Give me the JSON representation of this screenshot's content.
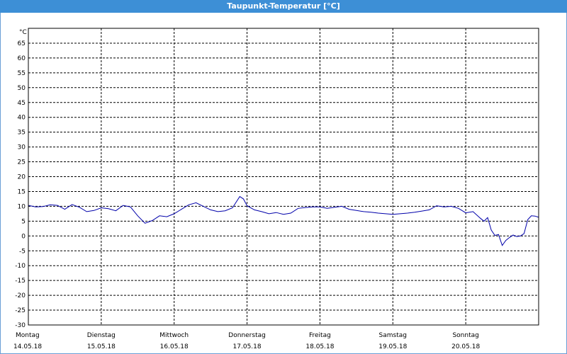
{
  "window": {
    "title": "Taupunkt-Temperatur [°C]"
  },
  "colors": {
    "title_bar": "#3d8fd6",
    "series_line": "#0000aa",
    "grid": "#000000"
  },
  "chart_data": {
    "type": "line",
    "title": "Taupunkt-Temperatur [°C]",
    "ylabel": "°C",
    "ylim": [
      -30,
      70
    ],
    "yticks": [
      65,
      60,
      55,
      50,
      45,
      40,
      35,
      30,
      25,
      20,
      15,
      10,
      5,
      0,
      -5,
      -10,
      -15,
      -20,
      -25,
      -30
    ],
    "xlim": [
      0,
      7
    ],
    "xticks": [
      {
        "x": 0,
        "day": "Montag",
        "date": "14.05.18"
      },
      {
        "x": 1,
        "day": "Dienstag",
        "date": "15.05.18"
      },
      {
        "x": 2,
        "day": "Mittwoch",
        "date": "16.05.18"
      },
      {
        "x": 3,
        "day": "Donnerstag",
        "date": "17.05.18"
      },
      {
        "x": 4,
        "day": "Freitag",
        "date": "18.05.18"
      },
      {
        "x": 5,
        "day": "Samstag",
        "date": "19.05.18"
      },
      {
        "x": 6,
        "day": "Sonntag",
        "date": "20.05.18"
      }
    ],
    "grid": true,
    "series": [
      {
        "x": [
          0,
          0.1,
          0.2,
          0.3,
          0.4,
          0.5,
          0.6,
          0.7,
          0.8,
          0.9,
          1.0,
          1.1,
          1.2,
          1.3,
          1.4,
          1.5,
          1.6,
          1.7,
          1.8,
          1.9,
          2.0,
          2.1,
          2.2,
          2.3,
          2.4,
          2.5,
          2.6,
          2.7,
          2.8,
          2.9,
          2.95,
          3.0,
          3.1,
          3.2,
          3.3,
          3.4,
          3.5,
          3.6,
          3.7,
          3.8,
          3.9,
          4.0,
          4.1,
          4.2,
          4.3,
          4.4,
          4.5,
          4.6,
          4.7,
          4.8,
          4.9,
          5.0,
          5.1,
          5.2,
          5.3,
          5.4,
          5.5,
          5.6,
          5.7,
          5.8,
          5.9,
          6.0,
          6.1,
          6.2,
          6.25,
          6.3,
          6.35,
          6.4,
          6.45,
          6.5,
          6.55,
          6.6,
          6.65,
          6.7,
          6.75,
          6.8,
          6.85,
          6.9,
          6.95,
          7.0
        ],
        "y": [
          10.3,
          9.8,
          9.9,
          10.5,
          10.3,
          9.0,
          10.6,
          9.7,
          8.2,
          8.6,
          9.5,
          9.2,
          8.5,
          10.3,
          9.8,
          6.8,
          4.3,
          5.2,
          6.8,
          6.5,
          7.5,
          9.0,
          10.5,
          11.2,
          10.0,
          8.8,
          8.2,
          8.5,
          9.5,
          13.3,
          12.5,
          10.2,
          8.8,
          8.2,
          7.5,
          7.9,
          7.3,
          7.7,
          9.3,
          9.6,
          9.8,
          9.8,
          9.3,
          9.7,
          10.0,
          9.0,
          8.6,
          8.2,
          8.0,
          7.7,
          7.5,
          7.3,
          7.5,
          7.7,
          8.0,
          8.4,
          8.8,
          10.2,
          9.8,
          10.0,
          9.3,
          7.8,
          8.2,
          6.0,
          5.0,
          6.2,
          2.0,
          0.2,
          0.5,
          -3.2,
          -1.5,
          -0.5,
          0.3,
          -0.2,
          0.0,
          0.8,
          5.5,
          6.8,
          6.7,
          6.3
        ]
      }
    ]
  }
}
